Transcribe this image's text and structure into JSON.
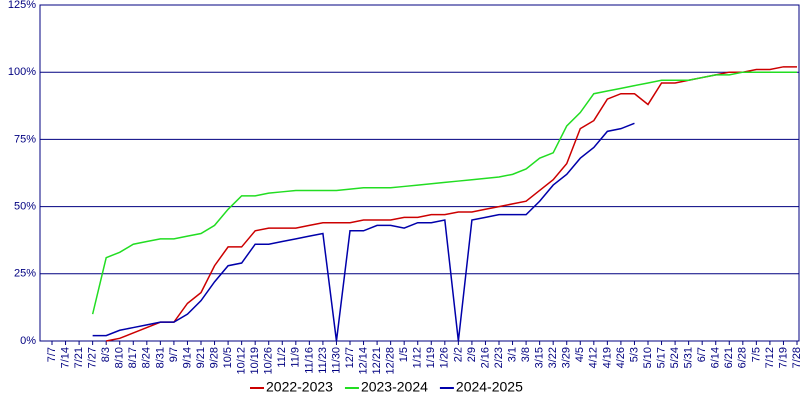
{
  "chart_data": {
    "type": "line",
    "categories": [
      "7/7",
      "7/14",
      "7/21",
      "7/27",
      "8/3",
      "8/10",
      "8/17",
      "8/24",
      "8/31",
      "9/7",
      "9/14",
      "9/21",
      "9/28",
      "10/5",
      "10/12",
      "10/19",
      "10/26",
      "11/2",
      "11/9",
      "11/16",
      "11/23",
      "11/30",
      "12/7",
      "12/14",
      "12/21",
      "12/28",
      "1/5",
      "1/12",
      "1/19",
      "1/26",
      "2/2",
      "2/9",
      "2/16",
      "2/23",
      "3/1",
      "3/8",
      "3/15",
      "3/22",
      "3/29",
      "4/5",
      "4/12",
      "4/19",
      "4/26",
      "5/3",
      "5/10",
      "5/17",
      "5/24",
      "5/31",
      "6/7",
      "6/14",
      "6/21",
      "6/28",
      "7/5",
      "7/12",
      "7/19",
      "7/28"
    ],
    "series": [
      {
        "name": "2022-2023",
        "color": "#cc0000",
        "values": [
          null,
          null,
          null,
          null,
          0,
          1,
          3,
          5,
          7,
          7,
          14,
          18,
          28,
          35,
          35,
          41,
          42,
          42,
          42,
          43,
          44,
          44,
          44,
          45,
          45,
          45,
          46,
          46,
          47,
          47,
          48,
          48,
          49,
          50,
          51,
          52,
          56,
          60,
          66,
          79,
          82,
          90,
          92,
          92,
          88,
          96,
          96,
          97,
          98,
          99,
          100,
          100,
          101,
          101,
          102,
          102
        ]
      },
      {
        "name": "2023-2024",
        "color": "#22dd22",
        "values": [
          null,
          null,
          null,
          10,
          31,
          33,
          36,
          37,
          38,
          38,
          39,
          40,
          43,
          49,
          54,
          54,
          55,
          55.5,
          56,
          56,
          56,
          56,
          56.5,
          57,
          57,
          57,
          57.5,
          58,
          58.5,
          59,
          59.5,
          60,
          60.5,
          61,
          62,
          64,
          68,
          70,
          80,
          85,
          92,
          93,
          94,
          95,
          96,
          97,
          97,
          97,
          98,
          99,
          99,
          100,
          100,
          100,
          100,
          100
        ]
      },
      {
        "name": "2024-2025",
        "color": "#0000aa",
        "values": [
          null,
          null,
          null,
          2,
          2,
          4,
          5,
          6,
          7,
          7,
          10,
          15,
          22,
          28,
          29,
          36,
          36,
          37,
          38,
          39,
          40,
          0,
          41,
          41,
          43,
          43,
          42,
          44,
          44,
          45,
          0,
          45,
          46,
          47,
          47,
          47,
          52,
          58,
          62,
          68,
          72,
          78,
          79,
          81,
          null,
          null,
          null,
          null,
          null,
          null,
          null,
          null,
          null,
          null,
          null,
          null
        ]
      }
    ],
    "ylim": [
      0,
      125
    ],
    "yticks": [
      {
        "value": 0,
        "label": "0%"
      },
      {
        "value": 25,
        "label": "25%"
      },
      {
        "value": 50,
        "label": "50%"
      },
      {
        "value": 75,
        "label": "75%"
      },
      {
        "value": 100,
        "label": "100%"
      },
      {
        "value": 125,
        "label": "125%"
      }
    ],
    "grid": true
  }
}
